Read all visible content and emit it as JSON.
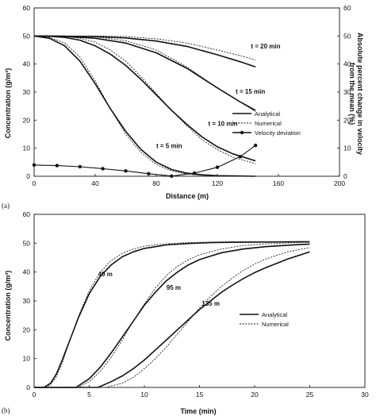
{
  "chart_data": [
    {
      "panel_label": "(a)",
      "type": "line",
      "xlabel": "Distance (m)",
      "ylabel": "Concentration (g/m³)",
      "ylabel2_line1": "Absolute percent change in velocity",
      "ylabel2_line2": "from the mean (%)",
      "xlim": [
        0,
        200
      ],
      "ylim": [
        0,
        60
      ],
      "y2lim": [
        0,
        60
      ],
      "x_ticks": [
        "0",
        "40",
        "80",
        "120",
        "160",
        "200"
      ],
      "y_ticks": [
        "0",
        "10",
        "20",
        "30",
        "40",
        "50",
        "60"
      ],
      "y2_ticks": [
        "0",
        "10",
        "20",
        "30",
        "40",
        "50",
        "60"
      ],
      "legend": {
        "position": "right",
        "entries": [
          {
            "label": "Analytical",
            "style": "solid"
          },
          {
            "label": "Numerical",
            "style": "dotted"
          },
          {
            "label": "Velocity deviation",
            "style": "solid-dot"
          }
        ]
      },
      "series": [
        {
          "time_label": "t = 5 min",
          "kind": "analytical",
          "x": [
            0,
            10,
            20,
            30,
            40,
            50,
            60,
            70,
            80,
            90,
            100,
            110,
            120,
            130,
            145
          ],
          "y": [
            50,
            49.2,
            46.5,
            41,
            33,
            24,
            16,
            9.5,
            5,
            2.4,
            1.1,
            0.5,
            0.2,
            0.1,
            0
          ]
        },
        {
          "time_label": "t = 5 min",
          "kind": "numerical",
          "x": [
            0,
            10,
            20,
            30,
            40,
            50,
            60,
            70,
            80,
            90,
            100,
            110,
            120,
            130,
            145
          ],
          "y": [
            50,
            49.5,
            47.5,
            42.5,
            34,
            24,
            15,
            8.5,
            4.2,
            1.9,
            0.8,
            0.3,
            0.1,
            0,
            0
          ]
        },
        {
          "time_label": "t = 10 min",
          "kind": "analytical",
          "x": [
            0,
            10,
            20,
            30,
            40,
            50,
            60,
            70,
            80,
            90,
            100,
            110,
            120,
            130,
            145
          ],
          "y": [
            50,
            49.9,
            49.5,
            48.5,
            46.5,
            43.5,
            39.5,
            34.5,
            29,
            23.5,
            18.5,
            14,
            10.5,
            8,
            5.5
          ]
        },
        {
          "time_label": "t = 10 min",
          "kind": "numerical",
          "x": [
            0,
            10,
            20,
            30,
            40,
            50,
            60,
            70,
            80,
            90,
            100,
            110,
            120,
            130,
            145
          ],
          "y": [
            50,
            50,
            49.8,
            49.2,
            47.8,
            45,
            41,
            35.5,
            29.5,
            23.5,
            18,
            13,
            9.5,
            6.8,
            4.5
          ]
        },
        {
          "time_label": "t = 15 min",
          "kind": "analytical",
          "x": [
            0,
            20,
            40,
            60,
            80,
            100,
            120,
            135,
            145
          ],
          "y": [
            50,
            49.9,
            49.2,
            47.5,
            44,
            38.5,
            31.5,
            26.5,
            23.5
          ]
        },
        {
          "time_label": "t = 15 min",
          "kind": "numerical",
          "x": [
            0,
            20,
            40,
            60,
            80,
            100,
            120,
            135,
            145
          ],
          "y": [
            50,
            50,
            49.7,
            48.3,
            45,
            39,
            31.5,
            26.5,
            23
          ]
        },
        {
          "time_label": "t = 20 min",
          "kind": "analytical",
          "x": [
            0,
            40,
            60,
            80,
            100,
            120,
            135,
            145
          ],
          "y": [
            50,
            49.8,
            49.3,
            48.2,
            46.3,
            43.3,
            40.8,
            39
          ]
        },
        {
          "time_label": "t = 20 min",
          "kind": "numerical",
          "x": [
            0,
            40,
            60,
            80,
            100,
            120,
            135,
            145
          ],
          "y": [
            50,
            50,
            49.8,
            49,
            47.5,
            45,
            43,
            41.5
          ]
        },
        {
          "time_label": "",
          "kind": "velocity",
          "x": [
            0,
            15,
            30,
            45,
            60,
            75,
            90,
            105,
            120,
            135,
            145
          ],
          "y": [
            4,
            3.8,
            3.4,
            2.7,
            1.9,
            0.9,
            0.05,
            1.1,
            3.2,
            7,
            11
          ]
        }
      ],
      "annotations": [
        {
          "text": "t = 20 min",
          "x": 142,
          "y": 45.5
        },
        {
          "text": "t = 15 min",
          "x": 132,
          "y": 29.5
        },
        {
          "text": "t = 10 min",
          "x": 114,
          "y": 18
        },
        {
          "text": "t = 5 min",
          "x": 80,
          "y": 10
        }
      ]
    },
    {
      "panel_label": "(b)",
      "type": "line",
      "xlabel": "Time (min)",
      "ylabel": "Concentration (g/m³)",
      "xlim": [
        0,
        30
      ],
      "ylim": [
        0,
        60
      ],
      "x_ticks": [
        "0",
        "5",
        "10",
        "15",
        "20",
        "25",
        "30"
      ],
      "y_ticks": [
        "0",
        "10",
        "20",
        "30",
        "40",
        "50",
        "60"
      ],
      "legend": {
        "position": "center-right",
        "entries": [
          {
            "label": "Analytical",
            "style": "solid"
          },
          {
            "label": "Numerical",
            "style": "dotted"
          }
        ]
      },
      "series": [
        {
          "distance_label": "40 m",
          "kind": "analytical",
          "x": [
            0,
            0.9,
            1.5,
            2,
            2.5,
            3,
            3.5,
            4,
            5,
            6,
            7,
            8,
            9,
            10,
            12,
            14,
            16,
            18,
            20,
            25
          ],
          "y": [
            0,
            0,
            1.5,
            4.5,
            9,
            14,
            19,
            24,
            32.5,
            38.5,
            42.5,
            45.3,
            47,
            48.2,
            49.4,
            49.9,
            50.2,
            50.3,
            50.4,
            50.5
          ]
        },
        {
          "distance_label": "40 m",
          "kind": "numerical",
          "x": [
            0,
            1,
            1.5,
            2,
            2.5,
            3,
            3.5,
            4,
            5,
            6,
            7,
            8,
            9,
            10,
            12,
            14,
            16,
            18,
            20,
            25
          ],
          "y": [
            0,
            0,
            1,
            3.5,
            8,
            13.5,
            19,
            24.5,
            33.5,
            40,
            44,
            46.5,
            48,
            49,
            49.8,
            50.2,
            50.4,
            50.5,
            50.5,
            50.6
          ]
        },
        {
          "distance_label": "95 m",
          "kind": "analytical",
          "x": [
            0,
            3.8,
            5,
            6,
            7,
            8,
            9,
            10,
            11,
            12,
            13,
            14,
            15,
            17,
            19,
            21,
            23,
            25
          ],
          "y": [
            0,
            0,
            3,
            7,
            12,
            17.5,
            23,
            28.5,
            33,
            37,
            40,
            42.5,
            44.3,
            46.7,
            48,
            48.8,
            49.3,
            49.7
          ]
        },
        {
          "distance_label": "95 m",
          "kind": "numerical",
          "x": [
            0,
            4,
            5,
            6,
            7,
            8,
            9,
            10,
            11,
            12,
            13,
            14,
            15,
            17,
            19,
            21,
            23,
            25
          ],
          "y": [
            0,
            0,
            2,
            5.5,
            10.5,
            16.5,
            23,
            29,
            34.5,
            38.8,
            42,
            44.3,
            46,
            48,
            49.2,
            49.8,
            50.1,
            50.3
          ]
        },
        {
          "distance_label": "135 m",
          "kind": "analytical",
          "x": [
            0,
            5.8,
            7,
            8,
            9,
            10,
            11,
            12,
            13,
            14,
            15,
            16,
            17,
            18,
            19,
            20,
            21,
            23,
            25
          ],
          "y": [
            0,
            0,
            2,
            4,
            6.5,
            9.5,
            13,
            16.5,
            20,
            23.5,
            27,
            30,
            33,
            35.5,
            37.8,
            39.8,
            41.5,
            44.5,
            47
          ]
        },
        {
          "distance_label": "135 m",
          "kind": "numerical",
          "x": [
            0,
            6.5,
            8,
            9,
            10,
            11,
            12,
            13,
            14,
            15,
            16,
            17,
            18,
            19,
            20,
            21,
            23,
            25
          ],
          "y": [
            0,
            0,
            1.5,
            3.5,
            6.5,
            10,
            14,
            18.5,
            23,
            27.5,
            31.5,
            35,
            38,
            40.6,
            42.8,
            44.5,
            47,
            48.5
          ]
        }
      ],
      "annotations": [
        {
          "text": "40 m",
          "x": 5.8,
          "y": 38.5
        },
        {
          "text": "95 m",
          "x": 12,
          "y": 33.8
        },
        {
          "text": "135 m",
          "x": 15.2,
          "y": 28.3
        }
      ]
    }
  ]
}
